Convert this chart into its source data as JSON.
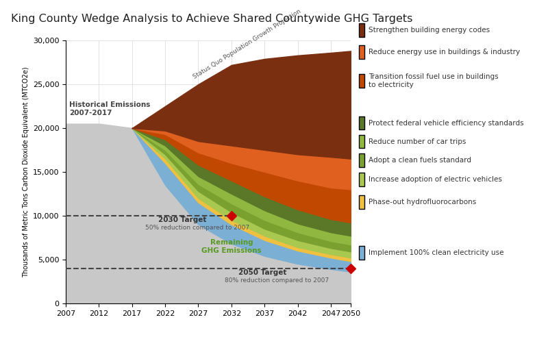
{
  "title": "King County Wedge Analysis to Achieve Shared Countywide GHG Targets",
  "ylabel": "Thousands of Metric Tons Carbon Dioxide Equivalent (MTCO2e)",
  "background_color": "#ffffff",
  "years": [
    2007,
    2012,
    2017,
    2022,
    2027,
    2032,
    2037,
    2042,
    2047,
    2050
  ],
  "xtick_labels": [
    "2007",
    "2012",
    "2017",
    "2022",
    "2027",
    "2032",
    "2037",
    "2042",
    "2047",
    "2050"
  ],
  "ylim": [
    0,
    30000
  ],
  "yticks": [
    0,
    5000,
    10000,
    15000,
    20000,
    25000,
    30000
  ],
  "ytick_labels": [
    "0",
    "5,000",
    "10,000",
    "15,000",
    "20,000",
    "25,000",
    "30,000"
  ],
  "hist_years": [
    2007,
    2012,
    2017
  ],
  "hist_vals": [
    20500,
    20500,
    20000
  ],
  "sq_years": [
    2017,
    2022,
    2027,
    2032,
    2037,
    2042,
    2047,
    2050
  ],
  "sq_vals": [
    20000,
    22500,
    25000,
    27200,
    27900,
    28300,
    28600,
    28800
  ],
  "wedge_years": [
    2017,
    2022,
    2027,
    2032,
    2037,
    2042,
    2047,
    2050
  ],
  "layer_tops": {
    "gray": [
      20000,
      13500,
      9000,
      6800,
      5400,
      4500,
      3900,
      3600
    ],
    "blue": [
      20000,
      16000,
      11500,
      9000,
      7200,
      6000,
      5200,
      4800
    ],
    "gold": [
      20000,
      16500,
      12000,
      9500,
      7700,
      6400,
      5600,
      5200
    ],
    "lgrn": [
      20000,
      17000,
      12800,
      10400,
      8500,
      7200,
      6300,
      5900
    ],
    "mgrn": [
      20000,
      17500,
      13600,
      11400,
      9500,
      8100,
      7100,
      6700
    ],
    "ygrn": [
      20000,
      18000,
      14500,
      12500,
      10600,
      9100,
      8100,
      7700
    ],
    "dolv": [
      20000,
      18700,
      15800,
      14000,
      12200,
      10700,
      9600,
      9200
    ],
    "dorg": [
      20000,
      19300,
      17200,
      16000,
      15000,
      14000,
      13200,
      13000
    ],
    "org": [
      20000,
      19700,
      18500,
      18000,
      17500,
      17000,
      16700,
      16500
    ],
    "brn": [
      20000,
      20000,
      20000,
      20800,
      21500,
      22000,
      22500,
      22800
    ]
  },
  "colors": {
    "gray": "#c8c8c8",
    "blue": "#7bafd4",
    "gold": "#f0c040",
    "lgrn": "#a8c850",
    "mgrn": "#7aa030",
    "ygrn": "#90b840",
    "dolv": "#5a7828",
    "dorg": "#c04800",
    "org": "#e06020",
    "brn": "#7a3010"
  },
  "sq_color": "#8b3a10",
  "legend_items": [
    {
      "num": "1",
      "text": "Strengthen building energy codes",
      "color": "#7a3010"
    },
    {
      "num": "2",
      "text": "Reduce energy use in buildings & industry",
      "color": "#e06020"
    },
    {
      "num": "3",
      "text": "Transition fossil fuel use in buildings\nto electricity",
      "color": "#c04800"
    },
    {
      "num": "4",
      "text": "Protect federal vehicle efficiency standards",
      "color": "#5a7828"
    },
    {
      "num": "5",
      "text": "Reduce number of car trips",
      "color": "#90b840"
    },
    {
      "num": "6",
      "text": "Adopt a clean fuels standard",
      "color": "#7aa030"
    },
    {
      "num": "7",
      "text": "Increase adoption of electric vehicles",
      "color": "#a8c850"
    },
    {
      "num": "8",
      "text": "Phase-out hydrofluorocarbons",
      "color": "#f0c040"
    },
    {
      "num": "9",
      "text": "Implement 100% clean electricity use",
      "color": "#7bafd4"
    }
  ]
}
